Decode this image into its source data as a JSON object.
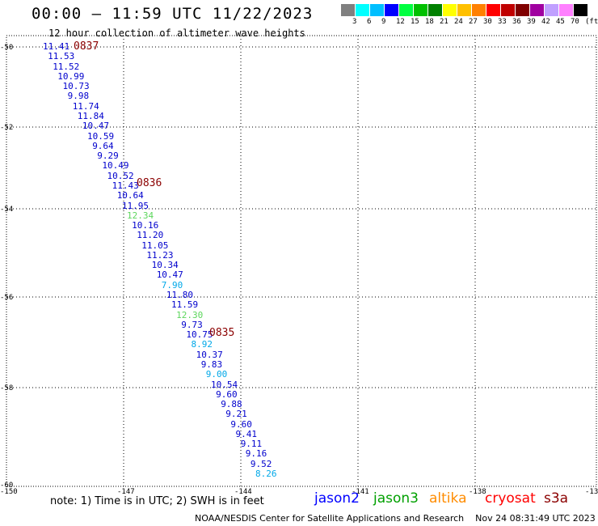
{
  "header": {
    "title": "00:00 – 11:59 UTC 11/22/2023",
    "subtitle": "12 hour collection of altimeter wave heights"
  },
  "legend": {
    "colors": [
      "#808080",
      "#00ffff",
      "#00bfff",
      "#0000ff",
      "#00ff40",
      "#00c000",
      "#008000",
      "#ffff00",
      "#ffc000",
      "#ff8000",
      "#ff0000",
      "#c00000",
      "#800000",
      "#a000a0",
      "#c0a0ff",
      "#ff80ff",
      "#000000"
    ],
    "labels": [
      "3",
      "6",
      "9",
      "12",
      "15",
      "18",
      "21",
      "24",
      "27",
      "30",
      "33",
      "36",
      "39",
      "42",
      "45",
      "70",
      "(ft)"
    ]
  },
  "axes": {
    "lat_labels": [
      "-50",
      "-52",
      "-54",
      "-56",
      "-58",
      "-60"
    ],
    "lon_labels": [
      "-150",
      "-147",
      "-144",
      "-141",
      "-138",
      "-13"
    ]
  },
  "time_labels": [
    "0837",
    "0836",
    "0835"
  ],
  "track": [
    {
      "v": "11.41",
      "c": "#0000cd"
    },
    {
      "v": "11.53",
      "c": "#0000cd"
    },
    {
      "v": "11.52",
      "c": "#0000cd"
    },
    {
      "v": "10.99",
      "c": "#0000cd"
    },
    {
      "v": "10.73",
      "c": "#0000cd"
    },
    {
      "v": "9.98",
      "c": "#0000cd"
    },
    {
      "v": "11.74",
      "c": "#0000cd"
    },
    {
      "v": "11.84",
      "c": "#0000cd"
    },
    {
      "v": "10.47",
      "c": "#0000cd"
    },
    {
      "v": "10.59",
      "c": "#0000cd"
    },
    {
      "v": "9.64",
      "c": "#0000cd"
    },
    {
      "v": "9.29",
      "c": "#0000cd"
    },
    {
      "v": "10.49",
      "c": "#0000cd"
    },
    {
      "v": "10.52",
      "c": "#0000cd"
    },
    {
      "v": "11.43",
      "c": "#0000cd"
    },
    {
      "v": "10.64",
      "c": "#0000cd"
    },
    {
      "v": "11.95",
      "c": "#0000cd"
    },
    {
      "v": "12.34",
      "c": "#5cd65c"
    },
    {
      "v": "10.16",
      "c": "#0000cd"
    },
    {
      "v": "11.20",
      "c": "#0000cd"
    },
    {
      "v": "11.05",
      "c": "#0000cd"
    },
    {
      "v": "11.23",
      "c": "#0000cd"
    },
    {
      "v": "10.34",
      "c": "#0000cd"
    },
    {
      "v": "10.47",
      "c": "#0000cd"
    },
    {
      "v": "7.90",
      "c": "#00a8e8"
    },
    {
      "v": "11.80",
      "c": "#0000cd"
    },
    {
      "v": "11.59",
      "c": "#0000cd"
    },
    {
      "v": "12.30",
      "c": "#5cd65c"
    },
    {
      "v": "9.73",
      "c": "#0000cd"
    },
    {
      "v": "10.75",
      "c": "#0000cd"
    },
    {
      "v": "8.92",
      "c": "#00a8e8"
    },
    {
      "v": "10.37",
      "c": "#0000cd"
    },
    {
      "v": "9.83",
      "c": "#0000cd"
    },
    {
      "v": "9.00",
      "c": "#00a8e8"
    },
    {
      "v": "10.54",
      "c": "#0000cd"
    },
    {
      "v": "9.60",
      "c": "#0000cd"
    },
    {
      "v": "9.88",
      "c": "#0000cd"
    },
    {
      "v": "9.21",
      "c": "#0000cd"
    },
    {
      "v": "9.60",
      "c": "#0000cd"
    },
    {
      "v": "9.41",
      "c": "#0000cd"
    },
    {
      "v": "9.11",
      "c": "#0000cd"
    },
    {
      "v": "9.16",
      "c": "#0000cd"
    },
    {
      "v": "9.52",
      "c": "#0000cd"
    },
    {
      "v": "8.26",
      "c": "#00a8e8"
    }
  ],
  "footer": {
    "note": "note: 1) Time is in UTC; 2) SWH is in feet",
    "satellites": [
      {
        "name": "jason2",
        "color": "#0000ff"
      },
      {
        "name": "jason3",
        "color": "#00a000"
      },
      {
        "name": "altika",
        "color": "#ff8c00"
      },
      {
        "name": "cryosat",
        "color": "#ff0000"
      },
      {
        "name": "s3a",
        "color": "#8b0000"
      }
    ],
    "credit": "NOAA/NESDIS Center for Satellite Applications and Research    Nov 24 08:31:49 UTC 2023"
  }
}
